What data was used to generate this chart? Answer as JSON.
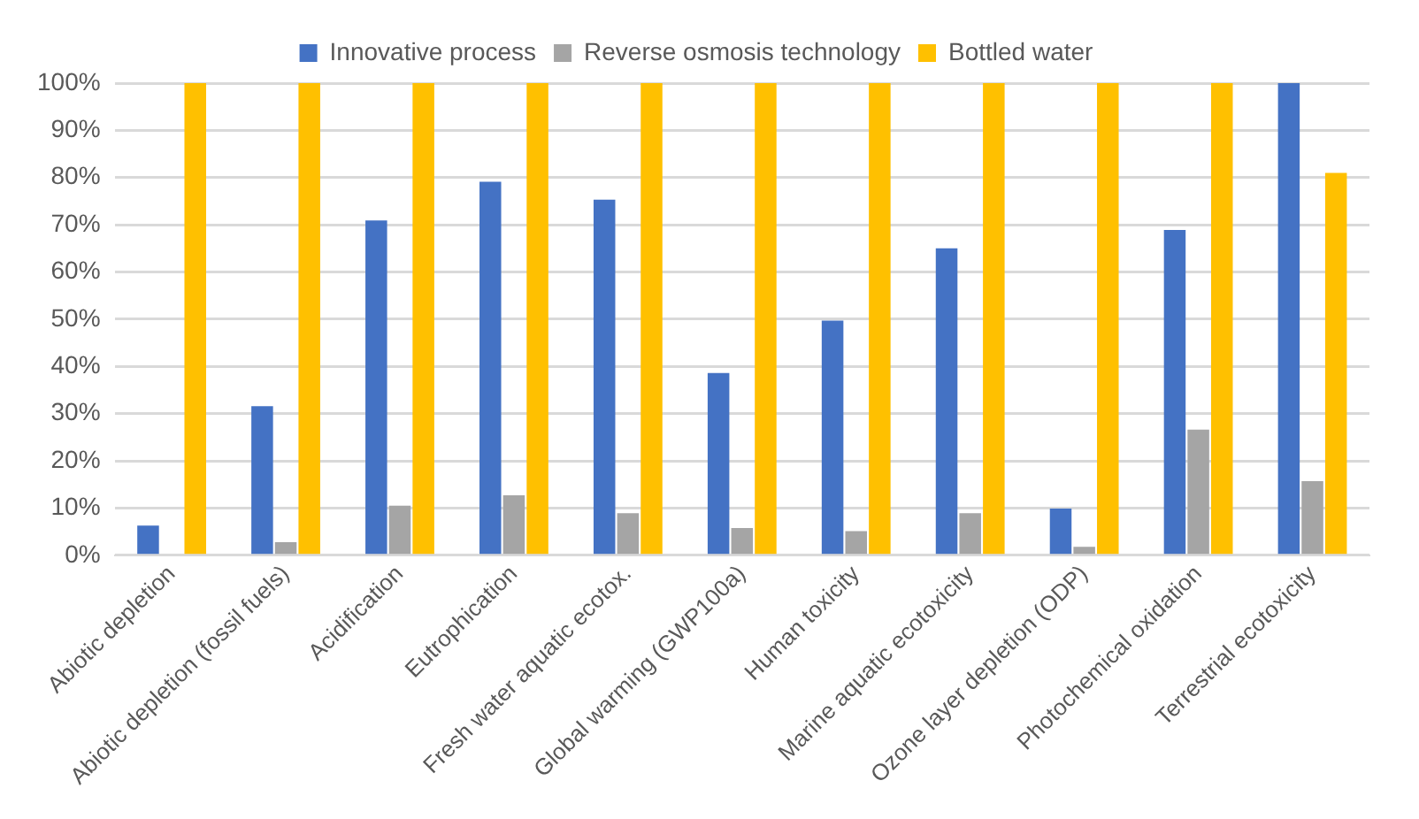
{
  "chart_data": {
    "type": "bar",
    "categories": [
      "Abiotic depletion",
      "Abiotic depletion (fossil fuels)",
      "Acidification",
      "Eutrophication",
      "Fresh water aquatic ecotox.",
      "Global warming (GWP100a)",
      "Human toxicity",
      "Marine aquatic ecotoxicity",
      "Ozone layer depletion (ODP)",
      "Photochemical oxidation",
      "Terrestrial ecotoxicity"
    ],
    "series": [
      {
        "name": "Innovative process",
        "color": "#4472c4",
        "values": [
          6.3,
          31.6,
          70.9,
          79.1,
          75.3,
          38.6,
          49.7,
          65,
          9.9,
          68.9,
          100
        ]
      },
      {
        "name": "Reverse osmosis technology",
        "color": "#a5a5a5",
        "values": [
          0,
          2.8,
          10.5,
          12.7,
          8.9,
          5.8,
          5.1,
          8.9,
          1.8,
          26.6,
          15.7
        ]
      },
      {
        "name": "Bottled water",
        "color": "#ffc000",
        "values": [
          100,
          100,
          100,
          100,
          100,
          100,
          100,
          100,
          100,
          100,
          81
        ]
      }
    ],
    "ylim": [
      0,
      100
    ],
    "yticks": [
      {
        "value": 0,
        "label": "0%"
      },
      {
        "value": 10,
        "label": "10%"
      },
      {
        "value": 20,
        "label": "20%"
      },
      {
        "value": 30,
        "label": "30%"
      },
      {
        "value": 40,
        "label": "40%"
      },
      {
        "value": 50,
        "label": "50%"
      },
      {
        "value": 60,
        "label": "60%"
      },
      {
        "value": 70,
        "label": "70%"
      },
      {
        "value": 80,
        "label": "80%"
      },
      {
        "value": 90,
        "label": "90%"
      },
      {
        "value": 100,
        "label": "100%"
      }
    ],
    "grid": "y",
    "legend": "top"
  }
}
